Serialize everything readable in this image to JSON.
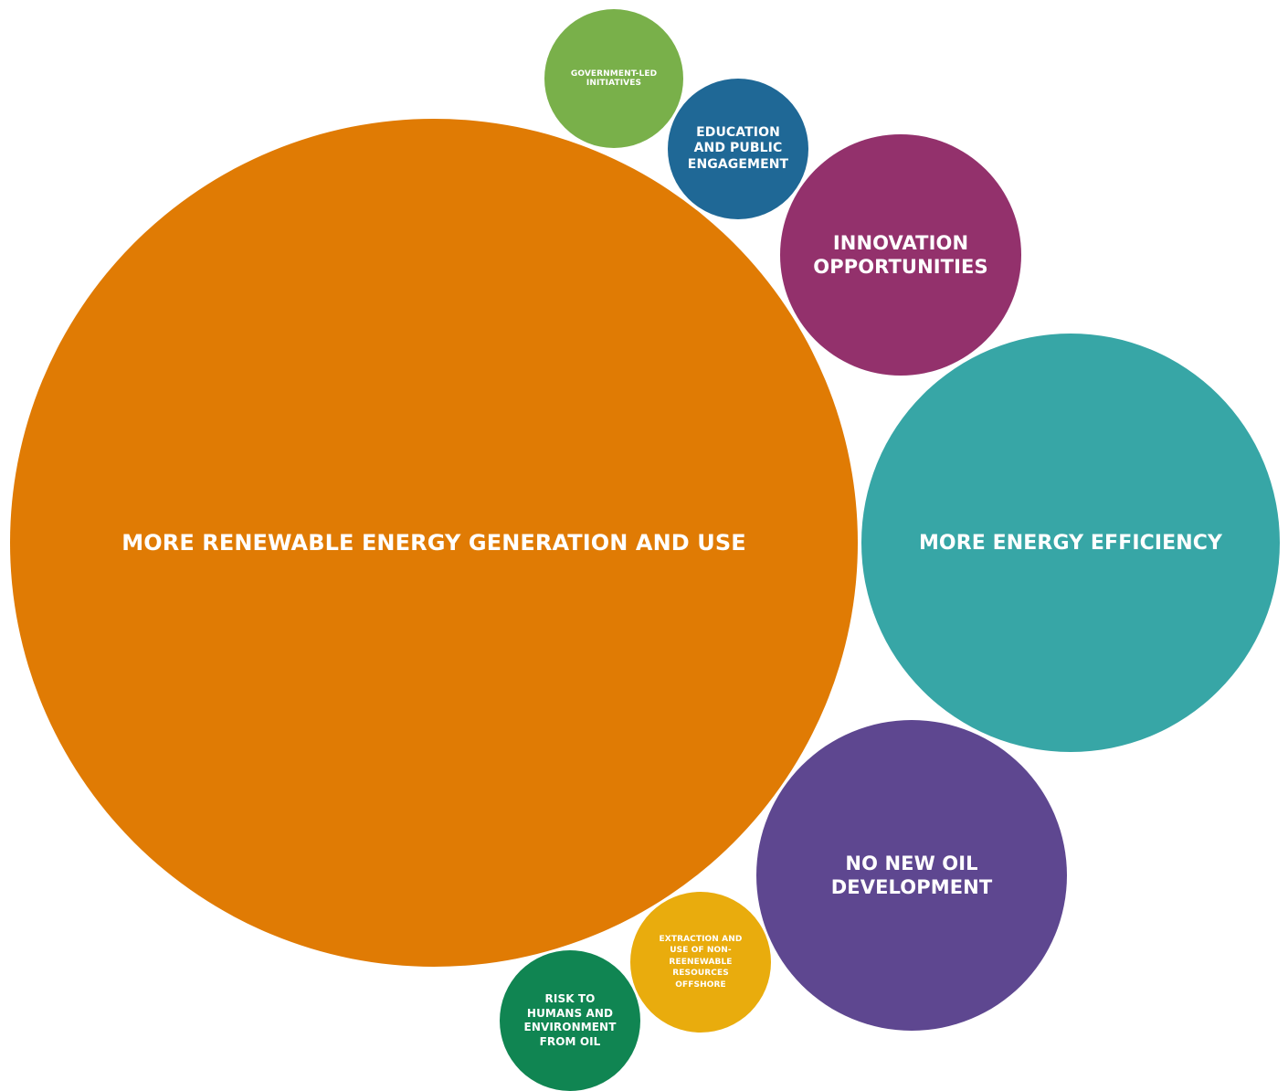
{
  "chart_data": {
    "type": "bubble",
    "title": "",
    "bubbles": [
      {
        "label": "MORE RENEWABLE ENERGY GENERATION AND USE",
        "color": "#E07B04"
      },
      {
        "label": "MORE ENERGY EFFICIENCY",
        "color": "#37A6A6"
      },
      {
        "label": "NO NEW OIL DEVELOPMENT",
        "color": "#5E4790"
      },
      {
        "label": "INNOVATION OPPORTUNITIES",
        "color": "#93316C"
      },
      {
        "label": "EDUCATION AND PUBLIC ENGAGEMENT",
        "color": "#1F6896"
      },
      {
        "label": "GOVERNMENT-LED INITIATIVES",
        "color": "#79B04A"
      },
      {
        "label": "EXTRACTION AND USE OF NON-REENEWABLE RESOURCES OFFSHORE",
        "color": "#E9AC0D"
      },
      {
        "label": "RISK TO HUMANS AND ENVIRONMENT FROM OIL",
        "color": "#108552"
      }
    ]
  }
}
